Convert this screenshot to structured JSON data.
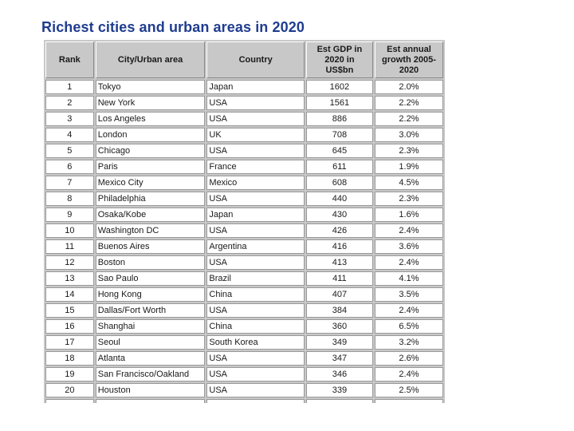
{
  "title": "Richest cities and urban areas in 2020",
  "headers": {
    "rank": "Rank",
    "city": "City/Urban area",
    "country": "Country",
    "gdp": [
      "Est GDP in",
      "2020 in",
      "US$bn"
    ],
    "growth": [
      "Est annual",
      "growth 2005-",
      "2020"
    ]
  },
  "rows": [
    {
      "rank": "1",
      "city": "Tokyo",
      "country": "Japan",
      "gdp": "1602",
      "growth": "2.0%"
    },
    {
      "rank": "2",
      "city": "New York",
      "country": "USA",
      "gdp": "1561",
      "growth": "2.2%"
    },
    {
      "rank": "3",
      "city": "Los Angeles",
      "country": "USA",
      "gdp": "886",
      "growth": "2.2%"
    },
    {
      "rank": "4",
      "city": "London",
      "country": "UK",
      "gdp": "708",
      "growth": "3.0%"
    },
    {
      "rank": "5",
      "city": "Chicago",
      "country": "USA",
      "gdp": "645",
      "growth": "2.3%"
    },
    {
      "rank": "6",
      "city": "Paris",
      "country": "France",
      "gdp": "611",
      "growth": "1.9%"
    },
    {
      "rank": "7",
      "city": "Mexico City",
      "country": "Mexico",
      "gdp": "608",
      "growth": "4.5%"
    },
    {
      "rank": "8",
      "city": "Philadelphia",
      "country": "USA",
      "gdp": "440",
      "growth": "2.3%"
    },
    {
      "rank": "9",
      "city": "Osaka/Kobe",
      "country": "Japan",
      "gdp": "430",
      "growth": "1.6%"
    },
    {
      "rank": "10",
      "city": "Washington DC",
      "country": "USA",
      "gdp": "426",
      "growth": "2.4%"
    },
    {
      "rank": "11",
      "city": "Buenos Aires",
      "country": "Argentina",
      "gdp": "416",
      "growth": "3.6%"
    },
    {
      "rank": "12",
      "city": "Boston",
      "country": "USA",
      "gdp": "413",
      "growth": "2.4%"
    },
    {
      "rank": "13",
      "city": "Sao Paulo",
      "country": "Brazil",
      "gdp": "411",
      "growth": "4.1%"
    },
    {
      "rank": "14",
      "city": "Hong Kong",
      "country": "China",
      "gdp": "407",
      "growth": "3.5%"
    },
    {
      "rank": "15",
      "city": "Dallas/Fort Worth",
      "country": "USA",
      "gdp": "384",
      "growth": "2.4%"
    },
    {
      "rank": "16",
      "city": "Shanghai",
      "country": "China",
      "gdp": "360",
      "growth": "6.5%"
    },
    {
      "rank": "17",
      "city": "Seoul",
      "country": "South Korea",
      "gdp": "349",
      "growth": "3.2%"
    },
    {
      "rank": "18",
      "city": "Atlanta",
      "country": "USA",
      "gdp": "347",
      "growth": "2.6%"
    },
    {
      "rank": "19",
      "city": "San Francisco/Oakland",
      "country": "USA",
      "gdp": "346",
      "growth": "2.4%"
    },
    {
      "rank": "20",
      "city": "Houston",
      "country": "USA",
      "gdp": "339",
      "growth": "2.5%"
    }
  ]
}
